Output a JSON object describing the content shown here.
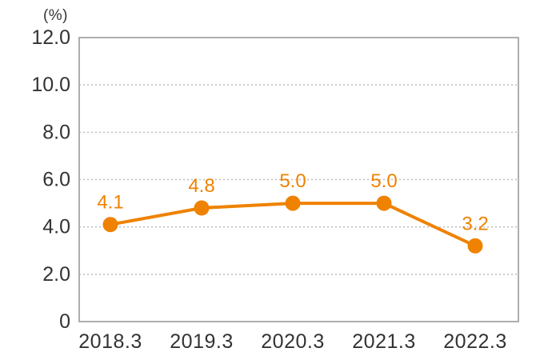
{
  "chart_data": {
    "type": "line",
    "title": "",
    "unit_label": "(%)",
    "categories": [
      "2018.3",
      "2019.3",
      "2020.3",
      "2021.3",
      "2022.3"
    ],
    "series": [
      {
        "name": "percentage-series",
        "values": [
          4.1,
          4.8,
          5.0,
          5.0,
          3.2
        ],
        "point_labels": [
          "4.1",
          "4.8",
          "5.0",
          "5.0",
          "3.2"
        ],
        "color": "#ef8200"
      }
    ],
    "ylim": [
      0,
      12
    ],
    "yticks": [
      {
        "value": 12,
        "label": "12.0"
      },
      {
        "value": 10,
        "label": "10.0"
      },
      {
        "value": 8,
        "label": "8.0"
      },
      {
        "value": 6,
        "label": "6.0"
      },
      {
        "value": 4,
        "label": "4.0"
      },
      {
        "value": 2,
        "label": "2.0"
      },
      {
        "value": 0,
        "label": "0"
      }
    ],
    "grid": "horizontal-dotted",
    "legend": "none",
    "colors": {
      "line": "#ef8200",
      "marker": "#ef8200",
      "value_label": "#ef8200",
      "axis_text": "#333333",
      "grid_line": "#bdbdbd",
      "plot_border": "#a6a6a6",
      "background": "#ffffff"
    }
  }
}
